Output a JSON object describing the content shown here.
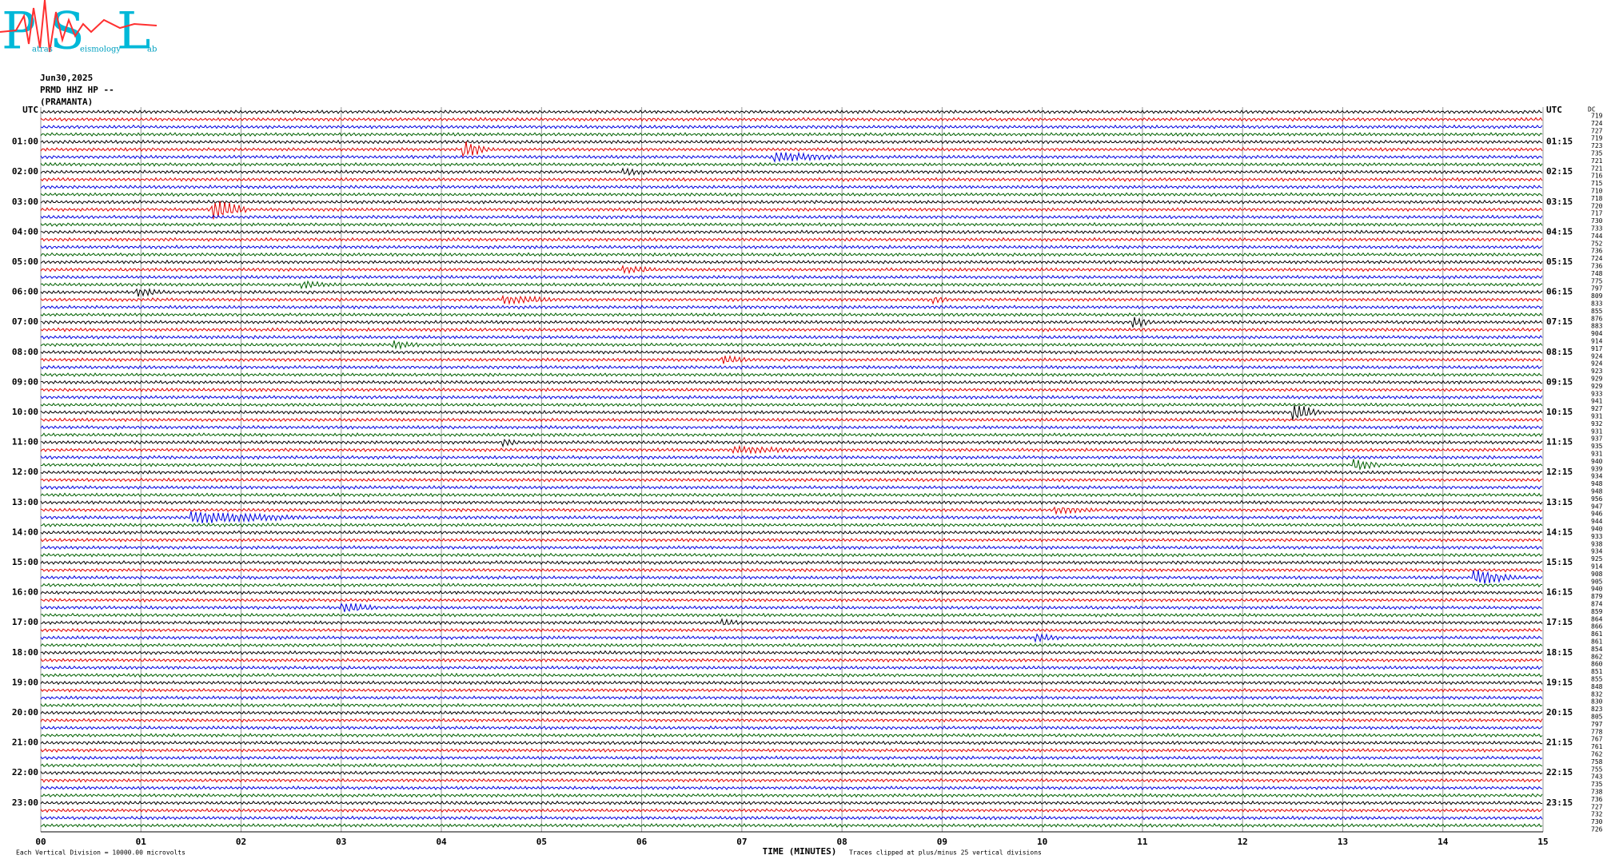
{
  "header": {
    "logo": {
      "letters": [
        "P",
        "S",
        "L"
      ],
      "words": [
        "atras",
        "eismology",
        "ab"
      ]
    },
    "date": "Jun30,2025",
    "station": "PRMD HHZ HP --",
    "site": "(PRAMANTA)"
  },
  "helicorder": {
    "left_labels": [
      "UTC",
      "01:00",
      "02:00",
      "03:00",
      "04:00",
      "05:00",
      "06:00",
      "07:00",
      "08:00",
      "09:00",
      "10:00",
      "11:00",
      "12:00",
      "13:00",
      "14:00",
      "15:00",
      "16:00",
      "17:00",
      "18:00",
      "19:00",
      "20:00",
      "21:00",
      "22:00",
      "23:00"
    ],
    "right_labels": [
      "UTC",
      "01:15",
      "02:15",
      "03:15",
      "04:15",
      "05:15",
      "06:15",
      "07:15",
      "08:15",
      "09:15",
      "10:15",
      "11:15",
      "12:15",
      "13:15",
      "14:15",
      "15:15",
      "16:15",
      "17:15",
      "18:15",
      "19:15",
      "20:15",
      "21:15",
      "22:15",
      "23:15"
    ],
    "offset_header": "DC",
    "offsets": [
      719,
      724,
      727,
      719,
      723,
      735,
      721,
      721,
      716,
      715,
      710,
      718,
      720,
      717,
      730,
      733,
      744,
      752,
      736,
      724,
      736,
      748,
      775,
      797,
      809,
      833,
      855,
      876,
      883,
      904,
      914,
      917,
      924,
      924,
      923,
      929,
      929,
      933,
      941,
      927,
      931,
      932,
      931,
      937,
      935,
      931,
      940,
      939,
      934,
      948,
      948,
      956,
      947,
      946,
      944,
      940,
      933,
      938,
      934,
      925,
      914,
      908,
      905,
      940,
      879,
      874,
      859,
      864,
      866,
      861,
      861,
      854,
      862,
      860,
      851,
      855,
      848,
      832,
      830,
      823,
      805,
      797,
      778,
      767,
      761,
      762,
      758,
      755,
      743,
      735,
      738,
      736,
      727,
      732,
      730,
      726
    ],
    "trace_colors": [
      "#000000",
      "#e00000",
      "#0000e0",
      "#006000"
    ],
    "x_ticks": [
      "00",
      "01",
      "02",
      "03",
      "04",
      "05",
      "06",
      "07",
      "08",
      "09",
      "10",
      "11",
      "12",
      "13",
      "14",
      "15"
    ],
    "x_axis_title": "TIME (MINUTES)",
    "clip_note": "Traces clipped at plus/minus 25 vertical divisions",
    "scale_note": "Each Vertical Division = 10000.00 microvolts"
  }
}
